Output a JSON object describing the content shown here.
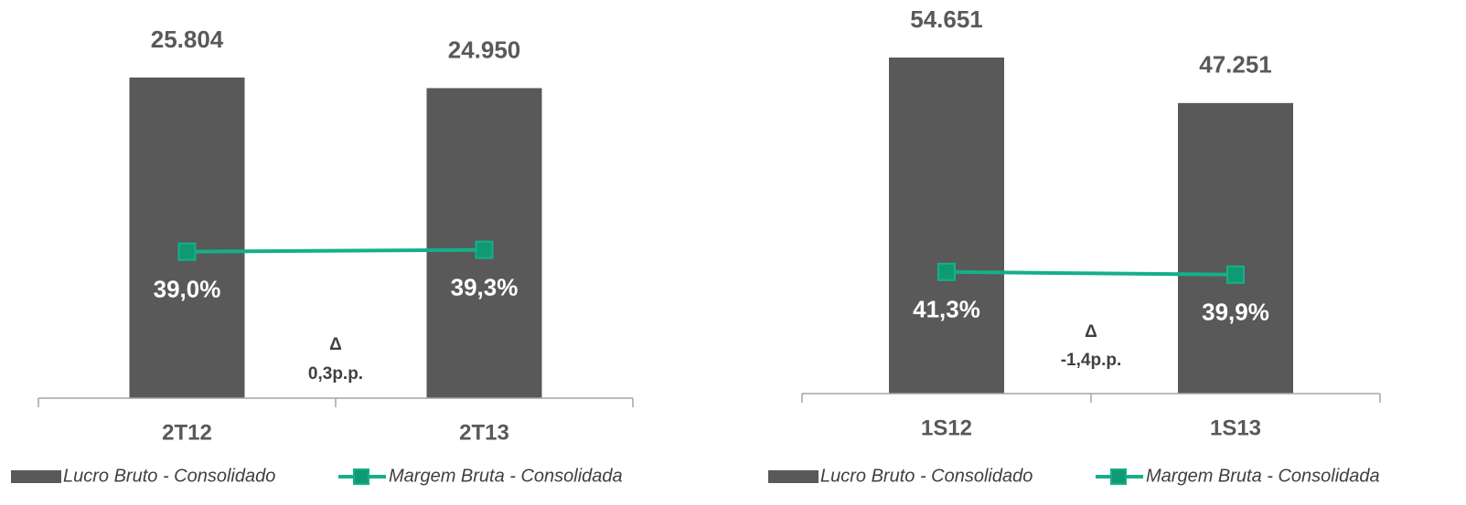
{
  "chart_data": [
    {
      "type": "bar_line",
      "categories": [
        "2T12",
        "2T13"
      ],
      "series": [
        {
          "name": "Lucro Bruto - Consolidado",
          "color": "#595959",
          "values": [
            25804,
            24950
          ],
          "value_labels": [
            "25.804",
            "24.950"
          ]
        },
        {
          "name": "Margem Bruta - Consolidada",
          "color": "#14b08a",
          "axis": "y2",
          "values": [
            39.0,
            39.3
          ],
          "value_labels": [
            "39,0%",
            "39,3%"
          ]
        }
      ],
      "ylim": [
        0,
        28000
      ],
      "y2lim": [
        15,
        72
      ],
      "annotations": [
        "Δ",
        "0,3p.p."
      ]
    },
    {
      "type": "bar_line",
      "categories": [
        "1S12",
        "1S13"
      ],
      "series": [
        {
          "name": "Lucro Bruto - Consolidado",
          "color": "#595959",
          "values": [
            54651,
            47251
          ],
          "value_labels": [
            "54.651",
            "47.251"
          ]
        },
        {
          "name": "Margem Bruta - Consolidada",
          "color": "#14b08a",
          "axis": "y2",
          "values": [
            41.3,
            39.9
          ],
          "value_labels": [
            "41,3%",
            "39,9%"
          ]
        }
      ],
      "ylim": [
        0,
        60000
      ],
      "y2lim": [
        -22,
        170
      ],
      "annotations": [
        "Δ",
        "-1,4p.p."
      ]
    }
  ]
}
